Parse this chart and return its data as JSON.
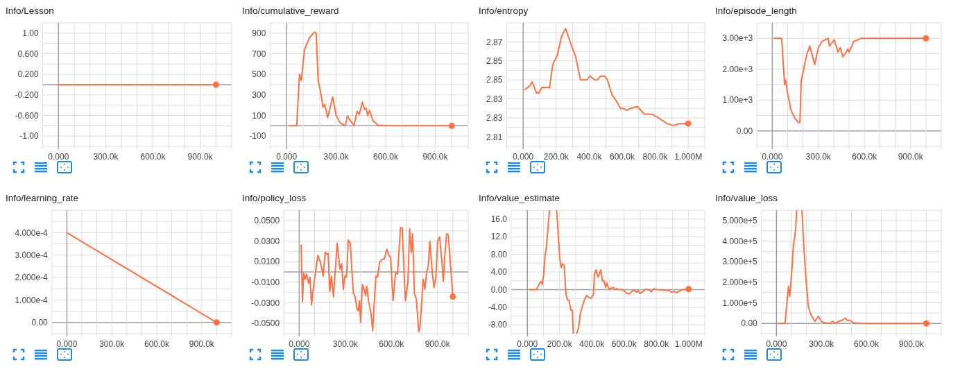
{
  "chart_data": [
    {
      "type": "line",
      "title": "Info/Lesson",
      "xlim": [
        -100000,
        1100000
      ],
      "ylim": [
        -1.2,
        1.2
      ],
      "grid": true,
      "xticks": [
        {
          "value": -100000,
          "label": null
        },
        {
          "value": 0,
          "label": "0.000"
        },
        {
          "value": 100000,
          "label": null
        },
        {
          "value": 200000,
          "label": null
        },
        {
          "value": 300000,
          "label": "300.0k"
        },
        {
          "value": 400000,
          "label": null
        },
        {
          "value": 500000,
          "label": null
        },
        {
          "value": 600000,
          "label": "600.0k"
        },
        {
          "value": 700000,
          "label": null
        },
        {
          "value": 800000,
          "label": null
        },
        {
          "value": 900000,
          "label": "900.0k"
        },
        {
          "value": 1000000,
          "label": null
        },
        {
          "value": 1100000,
          "label": null
        }
      ],
      "yticks": [
        {
          "value": -1.2,
          "label": null
        },
        {
          "value": -1,
          "label": "-1.00"
        },
        {
          "value": -0.8,
          "label": null
        },
        {
          "value": -0.6,
          "label": "-0.600"
        },
        {
          "value": -0.4,
          "label": null
        },
        {
          "value": -0.2,
          "label": "-0.200"
        },
        {
          "value": 0,
          "label": null
        },
        {
          "value": 0.2,
          "label": "0.200"
        },
        {
          "value": 0.4,
          "label": null
        },
        {
          "value": 0.6,
          "label": "0.600"
        },
        {
          "value": 0.8,
          "label": null
        },
        {
          "value": 1,
          "label": "1.00"
        },
        {
          "value": 1.2,
          "label": null
        }
      ],
      "series": [
        {
          "type": "line",
          "color": "#ff7043",
          "x": [
            0,
            1000000
          ],
          "values": [
            0,
            0
          ]
        },
        {
          "type": "scatter",
          "marker": "circle",
          "color": "#ff7043",
          "x": [
            1000000
          ],
          "values": [
            0
          ]
        }
      ]
    },
    {
      "type": "line",
      "title": "Info/cumulative_reward",
      "xlim": [
        -100000,
        1100000
      ],
      "ylim": [
        -200,
        1000
      ],
      "grid": true,
      "xticks": [
        {
          "value": -100000,
          "label": null
        },
        {
          "value": 0,
          "label": "0.000"
        },
        {
          "value": 100000,
          "label": null
        },
        {
          "value": 200000,
          "label": null
        },
        {
          "value": 300000,
          "label": "300.0k"
        },
        {
          "value": 400000,
          "label": null
        },
        {
          "value": 500000,
          "label": null
        },
        {
          "value": 600000,
          "label": "600.0k"
        },
        {
          "value": 700000,
          "label": null
        },
        {
          "value": 800000,
          "label": null
        },
        {
          "value": 900000,
          "label": "900.0k"
        },
        {
          "value": 1000000,
          "label": null
        },
        {
          "value": 1100000,
          "label": null
        }
      ],
      "yticks": [
        {
          "value": -200,
          "label": null
        },
        -100,
        {
          "value": 0,
          "label": null
        },
        100,
        {
          "value": 200,
          "label": null
        },
        300,
        {
          "value": 400,
          "label": null
        },
        500,
        {
          "value": 600,
          "label": null
        },
        700,
        {
          "value": 800,
          "label": null
        },
        900,
        {
          "value": 1000,
          "label": null
        }
      ],
      "series": [
        {
          "type": "line",
          "color": "#ff7043",
          "x": [
            16000,
            61000,
            78000,
            89000,
            108000,
            140000,
            169000,
            179000,
            191000,
            209000,
            220000,
            230000,
            249000,
            279000,
            300000,
            324000,
            356000,
            368000,
            408000,
            427000,
            440000,
            459000,
            472000,
            482000,
            491000,
            502000,
            523000,
            555000,
            587000,
            1000000
          ],
          "values": [
            0,
            0,
            500,
            440,
            740,
            860,
            910,
            900,
            440,
            300,
            180,
            210,
            80,
            280,
            100,
            30,
            0,
            95,
            0,
            140,
            110,
            230,
            160,
            170,
            100,
            150,
            50,
            5,
            0,
            0
          ]
        },
        {
          "type": "scatter",
          "marker": "circle",
          "color": "#ff7043",
          "x": [
            1000000
          ],
          "values": [
            0
          ]
        }
      ]
    },
    {
      "type": "line",
      "title": "Info/entropy",
      "xlim": [
        -100000,
        1100000
      ],
      "ylim": [
        2.81,
        2.875
      ],
      "grid": true,
      "xticks": [
        {
          "value": -100000,
          "label": null
        },
        {
          "value": 0,
          "label": "0.000"
        },
        {
          "value": 100000,
          "label": null
        },
        {
          "value": 200000,
          "label": "200.0k"
        },
        {
          "value": 300000,
          "label": null
        },
        {
          "value": 400000,
          "label": "400.0k"
        },
        {
          "value": 500000,
          "label": null
        },
        {
          "value": 600000,
          "label": "600.0k"
        },
        {
          "value": 700000,
          "label": null
        },
        {
          "value": 800000,
          "label": "800.0k"
        },
        {
          "value": 900000,
          "label": null
        },
        {
          "value": 1000000,
          "label": "1.000M"
        },
        {
          "value": 1100000,
          "label": null
        }
      ],
      "yticks": [
        {
          "value": 2.81,
          "label": null
        },
        {
          "value": 2.815,
          "label": "2.81"
        },
        {
          "value": 2.82,
          "label": null
        },
        {
          "value": 2.825,
          "label": "2.83"
        },
        {
          "value": 2.83,
          "label": null
        },
        {
          "value": 2.835,
          "label": "2.83"
        },
        {
          "value": 2.84,
          "label": null
        },
        {
          "value": 2.845,
          "label": "2.85"
        },
        {
          "value": 2.85,
          "label": null
        },
        {
          "value": 2.855,
          "label": "2.85"
        },
        {
          "value": 2.86,
          "label": null
        },
        {
          "value": 2.865,
          "label": "2.87"
        },
        {
          "value": 2.87,
          "label": null
        },
        {
          "value": 2.875,
          "label": null
        }
      ],
      "series": [
        {
          "type": "line",
          "color": "#ff7043",
          "x": [
            11000,
            43000,
            54000,
            64000,
            81000,
            93000,
            114000,
            136000,
            160000,
            179000,
            207000,
            233000,
            257000,
            293000,
            319000,
            347000,
            369000,
            386000,
            407000,
            433000,
            450000,
            469000,
            493000,
            510000,
            539000,
            557000,
            590000,
            607000,
            629000,
            650000,
            693000,
            733000,
            776000,
            821000,
            871000,
            907000,
            950000,
            1000000
          ],
          "values": [
            2.84,
            2.842,
            2.844,
            2.842,
            2.838,
            2.838,
            2.841,
            2.841,
            2.841,
            2.853,
            2.858,
            2.868,
            2.872,
            2.863,
            2.857,
            2.845,
            2.845,
            2.845,
            2.847,
            2.845,
            2.845,
            2.847,
            2.847,
            2.845,
            2.837,
            2.835,
            2.83,
            2.83,
            2.829,
            2.83,
            2.831,
            2.827,
            2.827,
            2.825,
            2.822,
            2.821,
            2.822,
            2.822
          ]
        },
        {
          "type": "scatter",
          "marker": "circle",
          "color": "#ff7043",
          "x": [
            1000000
          ],
          "values": [
            2.822
          ]
        }
      ]
    },
    {
      "type": "line",
      "title": "Info/episode_length",
      "xlim": [
        -100000,
        1100000
      ],
      "ylim": [
        -500,
        3500
      ],
      "grid": true,
      "xticks": [
        {
          "value": -100000,
          "label": null
        },
        {
          "value": 0,
          "label": "0.000"
        },
        {
          "value": 100000,
          "label": null
        },
        {
          "value": 200000,
          "label": null
        },
        {
          "value": 300000,
          "label": "300.0k"
        },
        {
          "value": 400000,
          "label": null
        },
        {
          "value": 500000,
          "label": null
        },
        {
          "value": 600000,
          "label": "600.0k"
        },
        {
          "value": 700000,
          "label": null
        },
        {
          "value": 800000,
          "label": null
        },
        {
          "value": 900000,
          "label": "900.0k"
        },
        {
          "value": 1000000,
          "label": null
        },
        {
          "value": 1100000,
          "label": null
        }
      ],
      "yticks": [
        {
          "value": -500,
          "label": null
        },
        {
          "value": 0,
          "label": "0.00"
        },
        {
          "value": 500,
          "label": null
        },
        {
          "value": 1000,
          "label": "1.00e+3"
        },
        {
          "value": 1500,
          "label": null
        },
        {
          "value": 2000,
          "label": "2.00e+3"
        },
        {
          "value": 2500,
          "label": null
        },
        {
          "value": 3000,
          "label": "3.00e+3"
        },
        {
          "value": 3500,
          "label": null
        }
      ],
      "series": [
        {
          "type": "line",
          "color": "#ff7043",
          "x": [
            13000,
            61000,
            80000,
            88000,
            97000,
            120000,
            148000,
            172000,
            180000,
            188000,
            212000,
            223000,
            244000,
            276000,
            300000,
            324000,
            364000,
            372000,
            404000,
            427000,
            443000,
            459000,
            475000,
            491000,
            499000,
            531000,
            579000,
            1000000
          ],
          "values": [
            3000,
            3000,
            1500,
            1650,
            1300,
            700,
            400,
            270,
            270,
            1600,
            2200,
            2450,
            2750,
            2150,
            2700,
            2900,
            3000,
            2750,
            2950,
            2550,
            2700,
            2400,
            2500,
            2650,
            2550,
            2900,
            3000,
            3000
          ]
        },
        {
          "type": "scatter",
          "marker": "circle",
          "color": "#ff7043",
          "x": [
            1000000
          ],
          "values": [
            3000
          ]
        }
      ]
    },
    {
      "type": "line",
      "title": "Info/learning_rate",
      "xlim": [
        -100000,
        1100000
      ],
      "ylim": [
        -5e-05,
        0.0005
      ],
      "grid": true,
      "xticks": [
        {
          "value": -100000,
          "label": null
        },
        {
          "value": 0,
          "label": "0.000"
        },
        {
          "value": 100000,
          "label": null
        },
        {
          "value": 200000,
          "label": null
        },
        {
          "value": 300000,
          "label": "300.0k"
        },
        {
          "value": 400000,
          "label": null
        },
        {
          "value": 500000,
          "label": null
        },
        {
          "value": 600000,
          "label": "600.0k"
        },
        {
          "value": 700000,
          "label": null
        },
        {
          "value": 800000,
          "label": null
        },
        {
          "value": 900000,
          "label": "900.0k"
        },
        {
          "value": 1000000,
          "label": null
        },
        {
          "value": 1100000,
          "label": null
        }
      ],
      "yticks": [
        {
          "value": -5e-05,
          "label": null
        },
        {
          "value": 0,
          "label": "0.00"
        },
        {
          "value": 5e-05,
          "label": null
        },
        {
          "value": 0.0001,
          "label": "1.000e-4"
        },
        {
          "value": 0.00015,
          "label": null
        },
        {
          "value": 0.0002,
          "label": "2.000e-4"
        },
        {
          "value": 0.00025,
          "label": null
        },
        {
          "value": 0.0003,
          "label": "3.000e-4"
        },
        {
          "value": 0.00035,
          "label": null
        },
        {
          "value": 0.0004,
          "label": "4.000e-4"
        },
        {
          "value": 0.00045,
          "label": null
        },
        {
          "value": 0.0005,
          "label": null
        }
      ],
      "series": [
        {
          "type": "line",
          "color": "#ff7043",
          "x": [
            0,
            1000000
          ],
          "values": [
            0.0004,
            0
          ]
        },
        {
          "type": "scatter",
          "marker": "circle",
          "color": "#ff7043",
          "x": [
            1000000
          ],
          "values": [
            0
          ]
        }
      ]
    },
    {
      "type": "line",
      "title": "Info/policy_loss",
      "xlim": [
        -100000,
        1100000
      ],
      "ylim": [
        -0.06,
        0.06
      ],
      "grid": true,
      "xticks": [
        {
          "value": -100000,
          "label": null
        },
        {
          "value": 0,
          "label": "0.000"
        },
        {
          "value": 100000,
          "label": null
        },
        {
          "value": 200000,
          "label": null
        },
        {
          "value": 300000,
          "label": "300.0k"
        },
        {
          "value": 400000,
          "label": null
        },
        {
          "value": 500000,
          "label": null
        },
        {
          "value": 600000,
          "label": "600.0k"
        },
        {
          "value": 700000,
          "label": null
        },
        {
          "value": 800000,
          "label": null
        },
        {
          "value": 900000,
          "label": "900.0k"
        },
        {
          "value": 1000000,
          "label": null
        },
        {
          "value": 1100000,
          "label": null
        }
      ],
      "yticks": [
        {
          "value": -0.06,
          "label": null
        },
        {
          "value": -0.05,
          "label": "-0.0500"
        },
        {
          "value": -0.04,
          "label": null
        },
        {
          "value": -0.03,
          "label": "-0.0300"
        },
        {
          "value": -0.02,
          "label": null
        },
        {
          "value": -0.01,
          "label": "-0.0100"
        },
        {
          "value": 0,
          "label": null
        },
        {
          "value": 0.01,
          "label": "0.0100"
        },
        {
          "value": 0.02,
          "label": null
        },
        {
          "value": 0.03,
          "label": "0.0300"
        },
        {
          "value": 0.04,
          "label": null
        },
        {
          "value": 0.05,
          "label": "0.0500"
        },
        {
          "value": 0.06,
          "label": null
        }
      ],
      "series": [
        {
          "type": "line",
          "color": "#ff7043",
          "x": [
            13000,
            21000,
            29000,
            38000,
            48000,
            61000,
            70000,
            80000,
            96000,
            121000,
            137000,
            156000,
            169000,
            182000,
            188000,
            199000,
            209000,
            223000,
            247000,
            265000,
            276000,
            287000,
            297000,
            308000,
            319000,
            332000,
            352000,
            364000,
            375000,
            384000,
            392000,
            400000,
            411000,
            424000,
            432000,
            440000,
            451000,
            467000,
            478000,
            499000,
            510000,
            523000,
            536000,
            555000,
            571000,
            584000,
            595000,
            611000,
            627000,
            640000,
            659000,
            670000,
            691000,
            707000,
            719000,
            730000,
            738000,
            750000,
            762000,
            778000,
            786000,
            807000,
            818000,
            829000,
            839000,
            850000,
            866000,
            877000,
            890000,
            901000,
            914000,
            930000,
            938000,
            946000,
            959000,
            970000,
            1000000
          ],
          "values": [
            0.026,
            -0.029,
            -0.001,
            -0.007,
            -0.002,
            -0.011,
            -0.005,
            -0.032,
            -0.011,
            0.016,
            0.01,
            -0.004,
            0.019,
            0.017,
            0.018,
            -0.019,
            -0.004,
            -0.024,
            0.028,
            0.003,
            0.008,
            -0.017,
            -0.004,
            -0.005,
            0.031,
            0.028,
            -0.02,
            -0.024,
            -0.035,
            -0.038,
            -0.028,
            -0.049,
            -0.012,
            -0.017,
            -0.023,
            -0.014,
            -0.028,
            -0.04,
            -0.057,
            -0.004,
            -0.005,
            0.009,
            0.012,
            0.013,
            0.022,
            0.016,
            0.014,
            -0.028,
            -0.001,
            -0.002,
            0.043,
            0.043,
            -0.028,
            -0.011,
            0.042,
            0.019,
            0.037,
            -0.021,
            -0.026,
            -0.058,
            -0.054,
            -0.007,
            -0.017,
            0,
            0.004,
            0.03,
            -0.001,
            -0.015,
            -0.004,
            0.03,
            0.034,
            0.007,
            -0.009,
            0.013,
            0.037,
            0.036,
            -0.024
          ]
        },
        {
          "type": "scatter",
          "marker": "circle",
          "color": "#ff7043",
          "x": [
            1000000
          ],
          "values": [
            -0.024
          ]
        }
      ]
    },
    {
      "type": "line",
      "title": "Info/value_estimate",
      "xlim": [
        -100000,
        1100000
      ],
      "ylim": [
        -10,
        18
      ],
      "grid": true,
      "xticks": [
        {
          "value": -100000,
          "label": null
        },
        {
          "value": 0,
          "label": "0.000"
        },
        {
          "value": 100000,
          "label": null
        },
        {
          "value": 200000,
          "label": "200.0k"
        },
        {
          "value": 300000,
          "label": null
        },
        {
          "value": 400000,
          "label": "400.0k"
        },
        {
          "value": 500000,
          "label": null
        },
        {
          "value": 600000,
          "label": "600.0k"
        },
        {
          "value": 700000,
          "label": null
        },
        {
          "value": 800000,
          "label": "800.0k"
        },
        {
          "value": 900000,
          "label": null
        },
        {
          "value": 1000000,
          "label": "1.000M"
        },
        {
          "value": 1100000,
          "label": null
        }
      ],
      "yticks": [
        {
          "value": -10,
          "label": null
        },
        {
          "value": -8,
          "label": "-8.00"
        },
        {
          "value": -6,
          "label": null
        },
        {
          "value": -4,
          "label": "-4.00"
        },
        {
          "value": -2,
          "label": null
        },
        {
          "value": 0,
          "label": "0.00"
        },
        {
          "value": 2,
          "label": null
        },
        {
          "value": 4,
          "label": "4.00"
        },
        {
          "value": 6,
          "label": null
        },
        {
          "value": 8,
          "label": "8.00"
        },
        {
          "value": 10,
          "label": null
        },
        {
          "value": 12,
          "label": "12.0"
        },
        {
          "value": 14,
          "label": null
        },
        {
          "value": 16,
          "label": "16.0"
        },
        {
          "value": 18,
          "label": null
        }
      ],
      "series": [
        {
          "type": "line",
          "color": "#ff7043",
          "x": [
            12000,
            56000,
            78000,
            85000,
            93000,
            100000,
            110000,
            118000,
            129000,
            137000,
            160000,
            181000,
            188000,
            200000,
            210000,
            218000,
            228000,
            240000,
            250000,
            259000,
            269000,
            279000,
            285000,
            295000,
            306000,
            318000,
            328000,
            343000,
            357000,
            368000,
            382000,
            394000,
            409000,
            416000,
            426000,
            438000,
            456000,
            465000,
            475000,
            485000,
            494000,
            504000,
            519000,
            534000,
            544000,
            556000,
            571000,
            593000,
            615000,
            632000,
            651000,
            666000,
            676000,
            688000,
            699000,
            715000,
            732000,
            754000,
            769000,
            784000,
            806000,
            879000,
            894000,
            909000,
            924000,
            938000,
            960000,
            1000000
          ],
          "values": [
            0,
            0,
            1.5,
            1.8,
            1.2,
            3,
            7.8,
            9.5,
            14.5,
            18,
            null,
            18,
            14.5,
            7.4,
            5,
            5.8,
            5.6,
            -1.2,
            -2.4,
            -2.4,
            -4.6,
            -4.7,
            -10,
            null,
            -10,
            -8.6,
            -5.5,
            -3.5,
            -2.1,
            -1.3,
            -1.8,
            -2,
            -1.2,
            3.5,
            4.5,
            2.8,
            4.5,
            2,
            2,
            0.5,
            1.5,
            0.2,
            0.3,
            0.5,
            0,
            0.2,
            0,
            0,
            -0.8,
            -1,
            -0.3,
            -0.2,
            -0.6,
            -0.2,
            -0.9,
            -0.5,
            0.1,
            -0.1,
            -0.5,
            0.2,
            0,
            -0.2,
            -0.6,
            -0.4,
            -0.7,
            -0.5,
            0,
            0.1
          ]
        },
        {
          "type": "scatter",
          "marker": "circle",
          "color": "#ff7043",
          "x": [
            1000000
          ],
          "values": [
            0.1
          ]
        }
      ]
    },
    {
      "type": "line",
      "title": "Info/value_loss",
      "xlim": [
        -100000,
        1100000
      ],
      "ylim": [
        -50000,
        550000
      ],
      "grid": true,
      "xticks": [
        {
          "value": -100000,
          "label": null
        },
        {
          "value": 0,
          "label": "0.000"
        },
        {
          "value": 100000,
          "label": null
        },
        {
          "value": 200000,
          "label": null
        },
        {
          "value": 300000,
          "label": "300.0k"
        },
        {
          "value": 400000,
          "label": null
        },
        {
          "value": 500000,
          "label": null
        },
        {
          "value": 600000,
          "label": "600.0k"
        },
        {
          "value": 700000,
          "label": null
        },
        {
          "value": 800000,
          "label": null
        },
        {
          "value": 900000,
          "label": "900.0k"
        },
        {
          "value": 1000000,
          "label": null
        },
        {
          "value": 1100000,
          "label": null
        }
      ],
      "yticks": [
        {
          "value": -50000,
          "label": null
        },
        {
          "value": 0,
          "label": "0.00"
        },
        {
          "value": 50000,
          "label": null
        },
        {
          "value": 100000,
          "label": "1.000e+5"
        },
        {
          "value": 150000,
          "label": null
        },
        {
          "value": 200000,
          "label": "2.000e+5"
        },
        {
          "value": 250000,
          "label": null
        },
        {
          "value": 300000,
          "label": "3.000e+5"
        },
        {
          "value": 350000,
          "label": null
        },
        {
          "value": 400000,
          "label": "4.000e+5"
        },
        {
          "value": 450000,
          "label": null
        },
        {
          "value": 500000,
          "label": "5.000e+5"
        },
        {
          "value": 550000,
          "label": null
        }
      ],
      "series": [
        {
          "type": "line",
          "color": "#ff7043",
          "x": [
            10000,
            57000,
            80000,
            88000,
            100000,
            113000,
            127000,
            135000,
            150000,
            170000,
            182000,
            196000,
            213000,
            231000,
            256000,
            279000,
            300000,
            326000,
            360000,
            374000,
            395000,
            416000,
            438000,
            459000,
            473000,
            490000,
            516000,
            568000,
            1000000
          ],
          "values": [
            0,
            0,
            180000,
            130000,
            230000,
            380000,
            450000,
            550000,
            null,
            550000,
            380000,
            220000,
            80000,
            40000,
            10000,
            35000,
            10000,
            2000,
            0,
            10000,
            2000,
            10000,
            15000,
            25000,
            15000,
            15000,
            3000,
            0,
            0
          ]
        },
        {
          "type": "scatter",
          "marker": "circle",
          "color": "#ff7043",
          "x": [
            1000000
          ],
          "values": [
            0
          ]
        }
      ]
    }
  ]
}
